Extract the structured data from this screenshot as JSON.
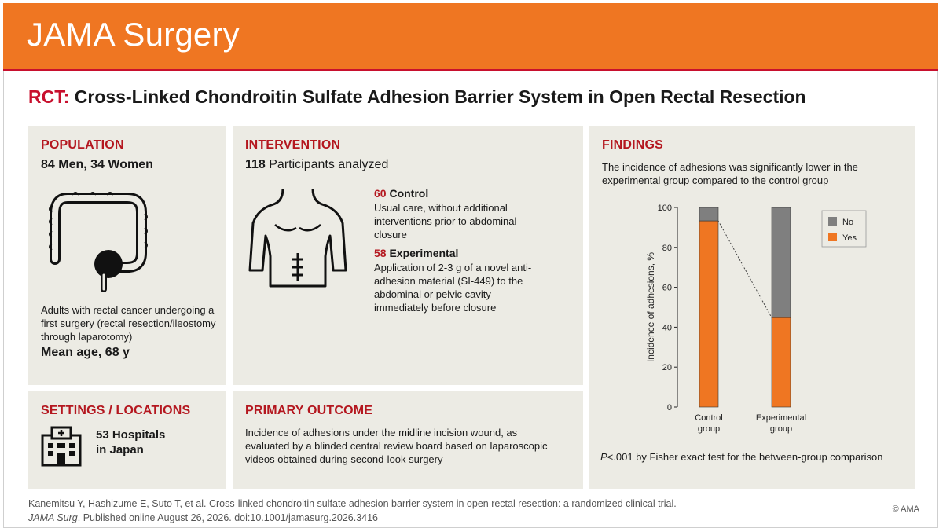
{
  "header": {
    "journal": "JAMA Surgery"
  },
  "title": {
    "prefix": "RCT:",
    "text": "Cross-Linked Chondroitin Sulfate Adhesion Barrier System in Open Rectal Resection"
  },
  "population": {
    "heading": "POPULATION",
    "summary": "84 Men, 34 Women",
    "description": "Adults with rectal cancer undergoing a first surgery (rectal resection/ileostomy through laparotomy)",
    "mean_age": "Mean age, 68 y",
    "icon": "colon-icon"
  },
  "intervention": {
    "heading": "INTERVENTION",
    "count": "118",
    "count_label": " Participants analyzed",
    "icon": "torso-icon",
    "groups": [
      {
        "count": "60",
        "name": " Control",
        "description": "Usual care, without additional interventions prior to abdominal closure"
      },
      {
        "count": "58",
        "name": " Experimental",
        "description": "Application of 2-3 g of a novel anti-adhesion material (SI-449) to the abdominal or pelvic cavity immediately before closure"
      }
    ]
  },
  "settings": {
    "heading": "SETTINGS / LOCATIONS",
    "text_line1": "53 Hospitals",
    "text_line2": "in Japan",
    "icon": "hospital-icon"
  },
  "primary_outcome": {
    "heading": "PRIMARY OUTCOME",
    "text": "Incidence of adhesions under the midline incision wound, as evaluated by a blinded central review board based on laparoscopic videos obtained during second-look surgery"
  },
  "findings": {
    "heading": "FINDINGS",
    "text": "The incidence of adhesions was significantly lower in the experimental group compared to the control group",
    "p_value_prefix": "P",
    "p_value_text": "<.001 by Fisher exact test for the between-group comparison"
  },
  "chart_data": {
    "type": "bar",
    "stacked": true,
    "categories": [
      "Control group",
      "Experimental group"
    ],
    "category_lines": [
      [
        "Control",
        "group"
      ],
      [
        "Experimental",
        "group"
      ]
    ],
    "series": [
      {
        "name": "Yes",
        "values": [
          93.3,
          44.8
        ],
        "color": "#ef7622"
      },
      {
        "name": "No",
        "values": [
          6.7,
          55.2
        ],
        "color": "#7f7f7f"
      }
    ],
    "ylabel": "Incidence of adhesions, %",
    "ylim": [
      0,
      100
    ],
    "yticks": [
      0,
      20,
      40,
      60,
      80,
      100
    ],
    "legend_position": "top-right",
    "grid": false
  },
  "footer": {
    "citation_line1": "Kanemitsu Y, Hashizume E, Suto T, et al. Cross-linked chondroitin sulfate adhesion barrier system in open rectal resection: a randomized clinical trial.",
    "journal_abbrev": "JAMA Surg",
    "citation_line2_rest": ". Published online August 26, 2026. doi:10.1001/jamasurg.2026.3416",
    "copyright": "© AMA"
  },
  "colors": {
    "accent": "#ef7622",
    "heading_red": "#b4171f",
    "panel_bg": "#ecebe4"
  }
}
